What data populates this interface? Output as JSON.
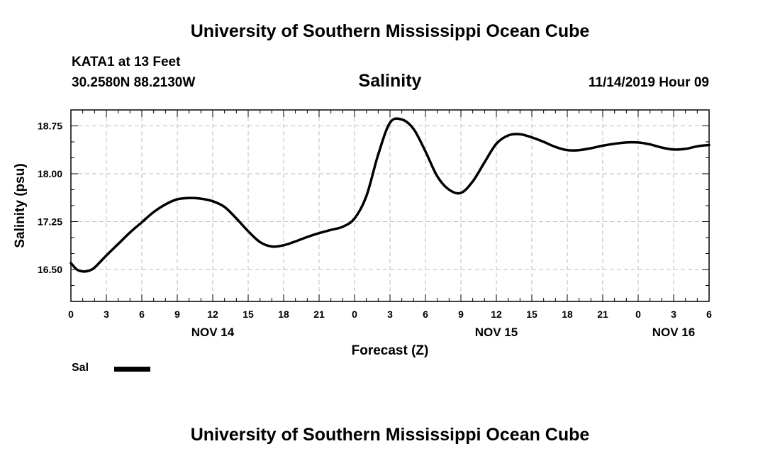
{
  "header": {
    "institution": "University of Southern Mississippi Ocean Cube",
    "station": "KATA1 at 13 Feet",
    "coordinates": "30.2580N 88.2130W",
    "parameter": "Salinity",
    "datetime": "11/14/2019 Hour 09"
  },
  "footer": {
    "institution": "University of Southern Mississippi Ocean Cube"
  },
  "legend": {
    "label": "Sal",
    "color": "#000000"
  },
  "chart_data": {
    "type": "line",
    "title": "Salinity",
    "xlabel": "Forecast (Z)",
    "ylabel": "Salinity (psu)",
    "xlim": [
      0,
      54
    ],
    "ylim": [
      16.0,
      19.0
    ],
    "grid": true,
    "x_tick_values": [
      0,
      3,
      6,
      9,
      12,
      15,
      18,
      21,
      24,
      27,
      30,
      33,
      36,
      39,
      42,
      45,
      48,
      51,
      54
    ],
    "x_tick_labels": [
      "0",
      "3",
      "6",
      "9",
      "12",
      "15",
      "18",
      "21",
      "0",
      "3",
      "6",
      "9",
      "12",
      "15",
      "18",
      "21",
      "0",
      "3",
      "6"
    ],
    "day_labels": [
      {
        "x": 12,
        "label": "NOV 14"
      },
      {
        "x": 36,
        "label": "NOV 15"
      },
      {
        "x": 51,
        "label": "NOV 16"
      }
    ],
    "y_ticks": [
      16.5,
      17.25,
      18.0,
      18.75
    ],
    "y_tick_labels": [
      "16.50",
      "17.25",
      "18.00",
      "18.75"
    ],
    "series": [
      {
        "name": "Sal",
        "color": "#000000",
        "x": [
          0,
          0.5,
          1,
          1.5,
          2,
          3,
          4,
          5,
          6,
          7,
          8,
          9,
          10,
          11,
          12,
          13,
          14,
          15,
          16,
          17,
          18,
          19,
          20,
          21,
          22,
          23,
          24,
          25,
          26,
          27,
          28,
          29,
          30,
          31,
          32,
          33,
          34,
          35,
          36,
          37,
          38,
          39,
          40,
          41,
          42,
          43,
          44,
          45,
          46,
          47,
          48,
          49,
          50,
          51,
          52,
          53,
          54
        ],
        "values": [
          16.6,
          16.5,
          16.47,
          16.48,
          16.53,
          16.72,
          16.9,
          17.08,
          17.24,
          17.4,
          17.52,
          17.6,
          17.62,
          17.61,
          17.57,
          17.48,
          17.3,
          17.1,
          16.93,
          16.86,
          16.88,
          16.94,
          17.01,
          17.07,
          17.12,
          17.17,
          17.3,
          17.65,
          18.3,
          18.8,
          18.85,
          18.7,
          18.35,
          17.96,
          17.75,
          17.7,
          17.88,
          18.18,
          18.47,
          18.6,
          18.62,
          18.57,
          18.5,
          18.42,
          18.37,
          18.37,
          18.4,
          18.44,
          18.47,
          18.49,
          18.49,
          18.46,
          18.41,
          18.38,
          18.39,
          18.43,
          18.45
        ]
      }
    ]
  }
}
